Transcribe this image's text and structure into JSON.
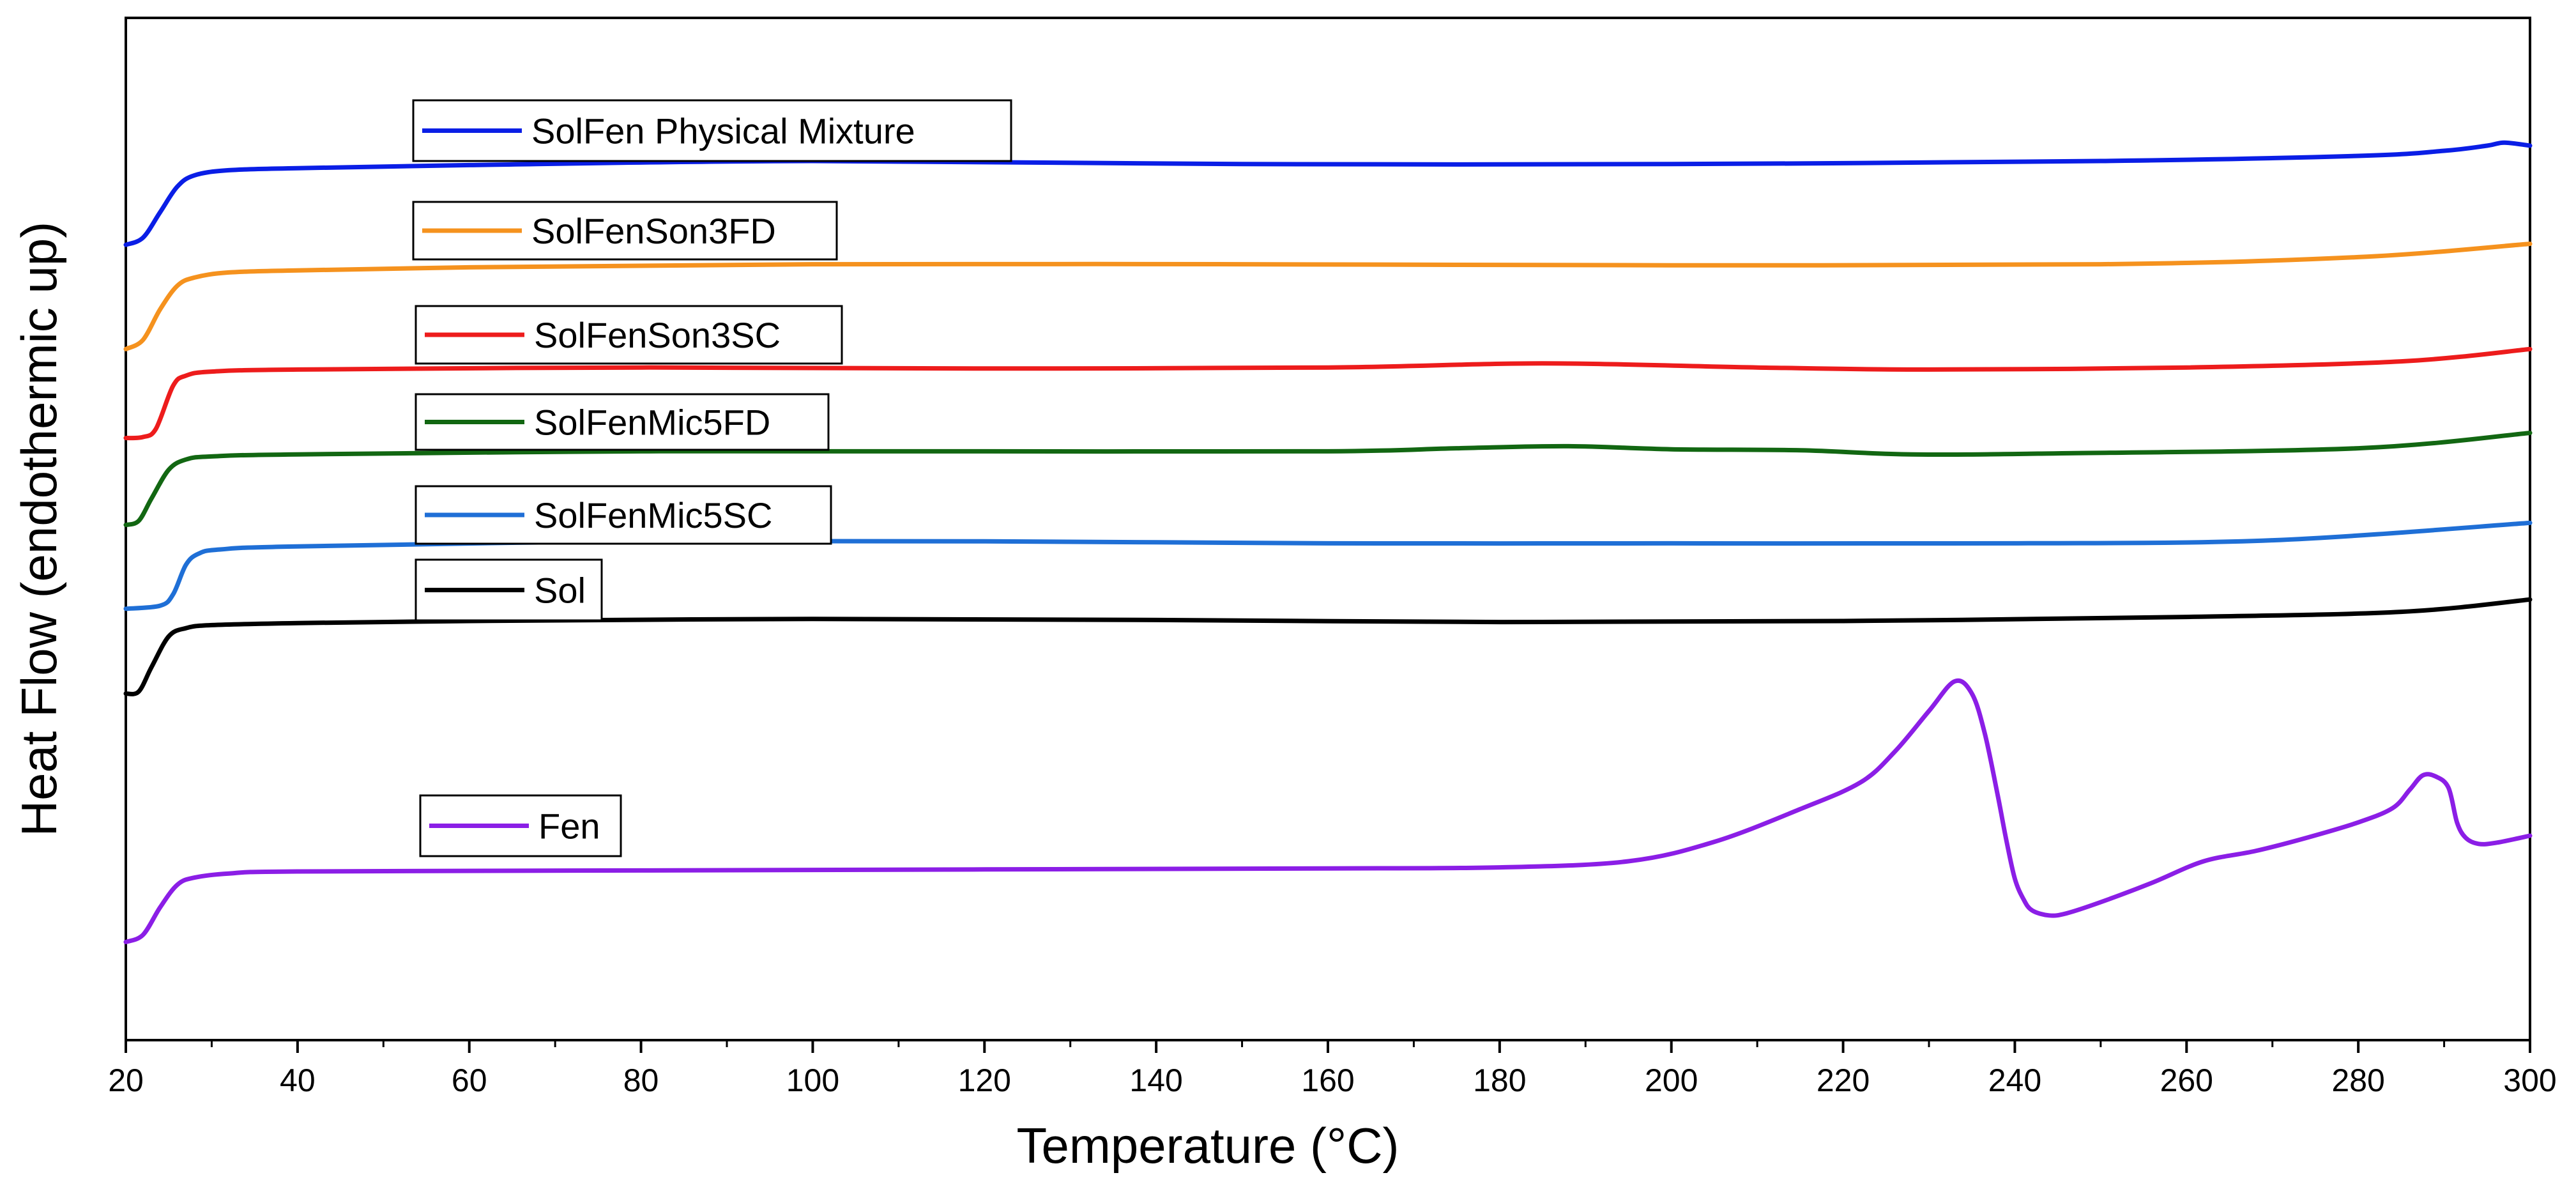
{
  "chart_data": {
    "type": "line",
    "title": "",
    "xlabel": "Temperature (°C)",
    "ylabel": "Heat Flow (endothermic up)",
    "xlim": [
      20,
      300
    ],
    "ylim": [
      0,
      100
    ],
    "y_ticks_labeled": false,
    "xticks": [
      20,
      40,
      60,
      80,
      100,
      120,
      140,
      160,
      180,
      200,
      220,
      240,
      260,
      280,
      300
    ],
    "xtick_labels": [
      "20",
      "40",
      "60",
      "80",
      "100",
      "120",
      "140",
      "160",
      "180",
      "200",
      "220",
      "240",
      "260",
      "280",
      "300"
    ],
    "series": [
      {
        "name": "SolFen Physical Mixture",
        "color": "#0a1ee6",
        "x": [
          20,
          22,
          24,
          26,
          28,
          32,
          40,
          60,
          100,
          150,
          200,
          250,
          280,
          290,
          295,
          297,
          300
        ],
        "y": [
          77.8,
          78.5,
          81,
          83.5,
          84.6,
          85.1,
          85.3,
          85.6,
          86,
          85.7,
          85.7,
          86,
          86.5,
          87,
          87.5,
          87.8,
          87.5
        ]
      },
      {
        "name": "SolFenSon3FD",
        "color": "#f5921e",
        "x": [
          20,
          22,
          24,
          26,
          28,
          32,
          40,
          60,
          100,
          150,
          200,
          250,
          280,
          300
        ],
        "y": [
          67.6,
          68.5,
          71.5,
          73.8,
          74.6,
          75.1,
          75.3,
          75.6,
          75.9,
          75.9,
          75.8,
          75.9,
          76.6,
          77.9
        ]
      },
      {
        "name": "SolFenSon3SC",
        "color": "#ed1c1c",
        "x": [
          20,
          22,
          23.5,
          25.5,
          27,
          30,
          40,
          80,
          120,
          160,
          185,
          210,
          230,
          260,
          285,
          300
        ],
        "y": [
          58.9,
          59,
          59.8,
          64,
          65,
          65.4,
          65.6,
          65.8,
          65.7,
          65.8,
          66.2,
          65.8,
          65.6,
          65.8,
          66.4,
          67.6
        ]
      },
      {
        "name": "SolFenMic5FD",
        "color": "#126712",
        "x": [
          20,
          21.5,
          23,
          25,
          27,
          30,
          40,
          80,
          120,
          160,
          175,
          188,
          200,
          215,
          228,
          245,
          280,
          300
        ],
        "y": [
          50.4,
          50.8,
          53,
          55.8,
          56.8,
          57.1,
          57.3,
          57.6,
          57.6,
          57.6,
          57.9,
          58.1,
          57.8,
          57.7,
          57.3,
          57.4,
          57.9,
          59.4
        ]
      },
      {
        "name": "SolFenMic5SC",
        "color": "#1f6fd6",
        "x": [
          20,
          24,
          25.5,
          27,
          28.5,
          31,
          40,
          80,
          120,
          160,
          200,
          240,
          270,
          300
        ],
        "y": [
          42.2,
          42.5,
          43.6,
          46.5,
          47.6,
          48,
          48.3,
          48.8,
          48.8,
          48.6,
          48.6,
          48.6,
          48.9,
          50.6
        ]
      },
      {
        "name": "Sol",
        "color": "#000000",
        "x": [
          20,
          21.5,
          23,
          25,
          27,
          30,
          40,
          60,
          100,
          140,
          180,
          220,
          260,
          285,
          300
        ],
        "y": [
          33.9,
          34.1,
          36.5,
          39.5,
          40.3,
          40.6,
          40.8,
          41,
          41.2,
          41.1,
          40.9,
          41,
          41.4,
          41.9,
          43.1
        ]
      },
      {
        "name": "Fen",
        "color": "#8b1ee6",
        "x": [
          20,
          22,
          24,
          26,
          28,
          32,
          40,
          80,
          120,
          160,
          180,
          195,
          205,
          215,
          222,
          226,
          230,
          233,
          235,
          236.5,
          238,
          239,
          240,
          241,
          242,
          244,
          246,
          250,
          256,
          262,
          268,
          274,
          280,
          284,
          286,
          287.5,
          289,
          290.5,
          291.5,
          292.5,
          294,
          296,
          300
        ],
        "y": [
          9.6,
          10.3,
          13,
          15.2,
          15.9,
          16.3,
          16.5,
          16.6,
          16.7,
          16.8,
          16.9,
          17.5,
          19.4,
          22.6,
          25.2,
          28.2,
          32.2,
          35.1,
          33.9,
          30,
          24,
          19.6,
          15.8,
          13.8,
          12.7,
          12.2,
          12.4,
          13.5,
          15.4,
          17.5,
          18.5,
          19.8,
          21.3,
          22.7,
          24.5,
          25.9,
          25.8,
          24.7,
          21.3,
          19.8,
          19.2,
          19.3,
          20
        ]
      }
    ],
    "legend": {
      "placement": "left-inside, each label beside its curve"
    }
  }
}
